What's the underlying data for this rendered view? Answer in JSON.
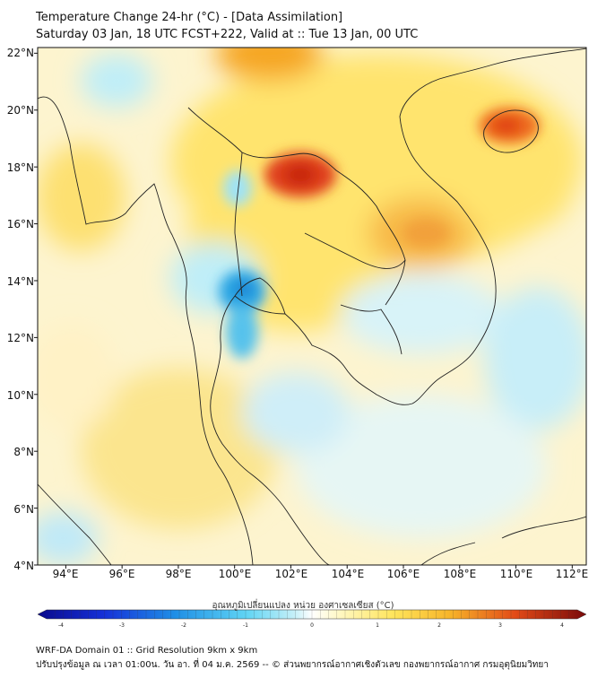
{
  "header": {
    "title_line1": "Temperature Change 24-hr (°C) - [Data Assimilation]",
    "title_line2": "Saturday 03 Jan, 18 UTC FCST+222, Valid at :: Tue 13 Jan, 00 UTC"
  },
  "map": {
    "lat_labels": [
      "22°N",
      "20°N",
      "18°N",
      "16°N",
      "14°N",
      "12°N",
      "10°N",
      "8°N",
      "6°N",
      "4°N"
    ],
    "lon_labels": [
      "94°E",
      "96°E",
      "98°E",
      "100°E",
      "102°E",
      "104°E",
      "106°E",
      "108°E",
      "110°E",
      "112°E"
    ],
    "lon_min": 93,
    "lon_max": 112.5,
    "lat_min": 4,
    "lat_max": 22.2
  },
  "colorbar": {
    "title": "อุณหภูมิเปลี่ยนแปลง หน่วย องศาเซลเซียส (°C)",
    "min": -4,
    "max": 4,
    "ticks": [
      "-4",
      "-3",
      "-2",
      "-1",
      "0",
      "1",
      "2",
      "3",
      "4"
    ]
  },
  "footer": {
    "line1": "WRF-DA Domain 01 :: Grid Resolution 9km x 9km",
    "line2": "ปรับปรุงข้อมูล ณ เวลา 01:00น. วัน อา. ที่ 04 ม.ค. 2569 -- © ส่วนพยากรณ์อากาศเชิงตัวเลข กองพยากรณ์อากาศ กรมอุตุนิยมวิทยา"
  },
  "colors": {
    "warm_peak": "#e0401a",
    "warm": "#f6a623",
    "mild": "#ffe66b",
    "neutral": "#fff6c8",
    "cool": "#bfeef8",
    "cold": "#38b6e8",
    "cold_peak": "#1a8fd8",
    "coast": "#222222"
  }
}
